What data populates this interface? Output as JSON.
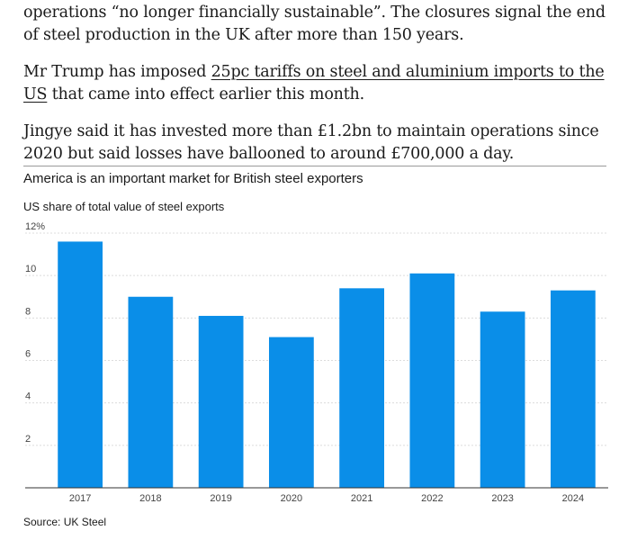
{
  "article": {
    "p1": "operations “no longer financially sustainable”. The closures signal the end of steel production in the UK after more than 150 years.",
    "p2_before": "Mr Trump has imposed ",
    "p2_link": "25pc tariffs on steel and aluminium imports to the US",
    "p2_after": " that came into effect earlier this month.",
    "p3": "Jingye said it has invested more than £1.2bn to maintain operations since 2020 but said losses have ballooned to around £700,000 a day."
  },
  "chart_data": {
    "type": "bar",
    "title": "America is an important market for British steel exporters",
    "subtitle": "US share of total value of steel exports",
    "categories": [
      "2017",
      "2018",
      "2019",
      "2020",
      "2021",
      "2022",
      "2023",
      "2024"
    ],
    "values": [
      11.6,
      9.0,
      8.1,
      7.1,
      9.4,
      10.1,
      8.3,
      9.3
    ],
    "ylim": [
      0,
      12
    ],
    "yticks": [
      2,
      4,
      6,
      8,
      10,
      12
    ],
    "ytick_labels": [
      "2",
      "4",
      "6",
      "8",
      "10",
      "12%"
    ],
    "xlabel": "",
    "ylabel": "",
    "bar_color": "#0a8ee8",
    "source": "Source: UK Steel"
  }
}
